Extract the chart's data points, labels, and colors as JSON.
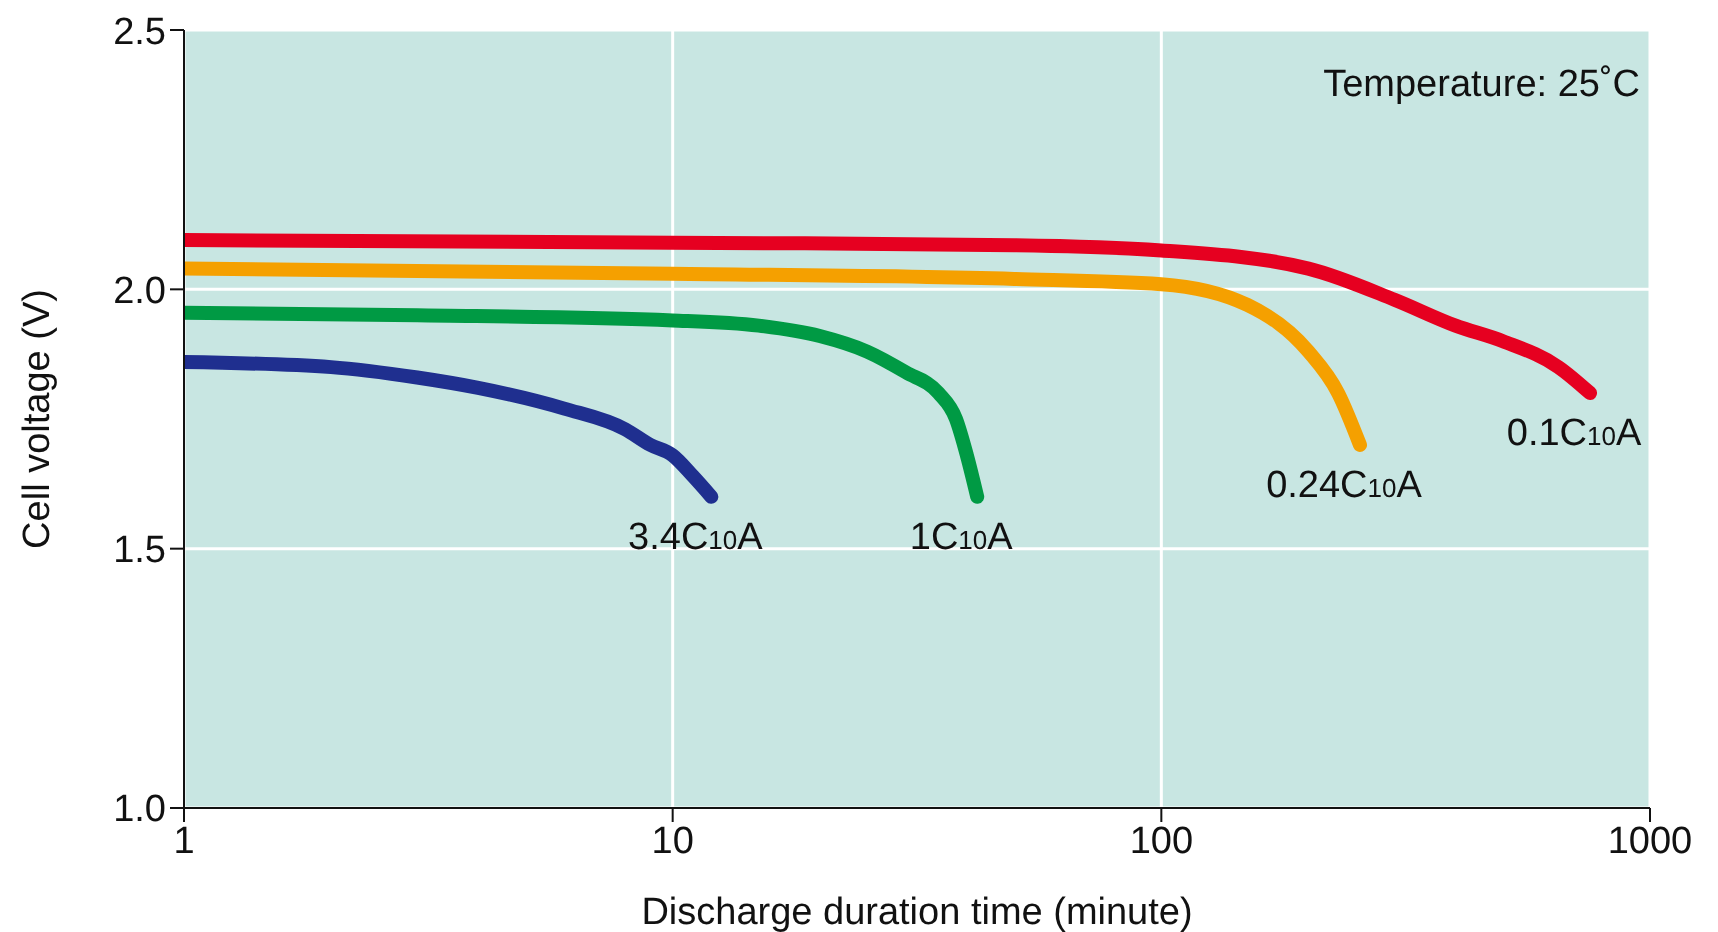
{
  "chart_data": {
    "type": "line",
    "xlabel": "Discharge duration time (minute)",
    "ylabel": "Cell voltage (V)",
    "log": "x",
    "xlim": [
      1,
      1000
    ],
    "xticks": [
      1,
      10,
      100,
      1000
    ],
    "ylim": [
      1.0,
      2.5
    ],
    "yticks": [
      {
        "value": 1.0,
        "label": "1.0"
      },
      {
        "value": 1.5,
        "label": "1.5"
      },
      {
        "value": 2.0,
        "label": "2.0"
      },
      {
        "value": 2.5,
        "label": "2.5"
      }
    ],
    "grid": true,
    "marker": "none",
    "line_style": "solid",
    "series": [
      {
        "color": "#1f2f8f",
        "x": [
          1,
          2,
          3,
          4,
          6,
          8,
          9,
          10,
          11,
          12
        ],
        "values": [
          1.86,
          1.85,
          1.83,
          1.81,
          1.77,
          1.73,
          1.7,
          1.68,
          1.64,
          1.6
        ]
      },
      {
        "color": "#009a44",
        "x": [
          1,
          3,
          10,
          15,
          20,
          25,
          30,
          35,
          38,
          40,
          42
        ],
        "values": [
          1.955,
          1.95,
          1.94,
          1.93,
          1.91,
          1.88,
          1.84,
          1.8,
          1.75,
          1.68,
          1.6
        ]
      },
      {
        "color": "#f5a000",
        "x": [
          1,
          10,
          50,
          100,
          150,
          200,
          230,
          255
        ],
        "values": [
          2.04,
          2.03,
          2.02,
          2.01,
          1.97,
          1.88,
          1.8,
          1.7
        ]
      },
      {
        "color": "#e60020",
        "x": [
          1,
          10,
          50,
          100,
          200,
          300,
          400,
          500,
          650,
          754
        ],
        "values": [
          2.095,
          2.09,
          2.085,
          2.075,
          2.04,
          1.98,
          1.93,
          1.9,
          1.85,
          1.8
        ]
      }
    ],
    "annotations": [
      {
        "text": "3.4C$_{10}$A",
        "x": 12,
        "y": 1.6
      },
      {
        "text": "1C$_{10}$A",
        "x": 42,
        "y": 1.6
      },
      {
        "text": "0.24C$_{10}$A",
        "x": 255,
        "y": 1.7
      },
      {
        "text": "0.1C$_{10}$A",
        "x": 754,
        "y": 1.8
      },
      "Temperature: 25˚C"
    ]
  }
}
